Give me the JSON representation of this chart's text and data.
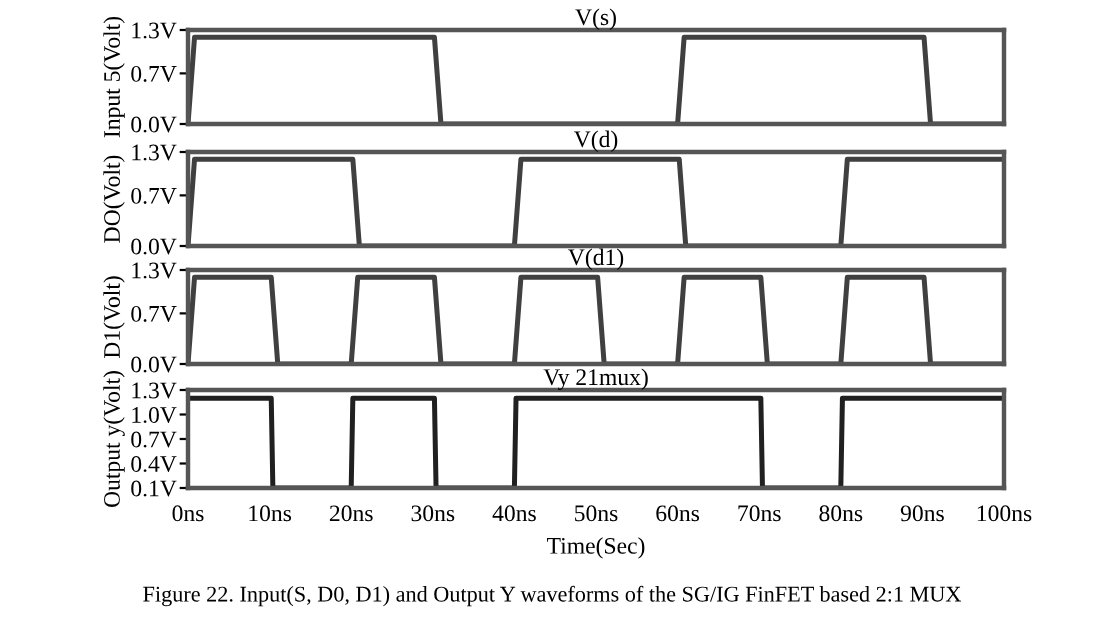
{
  "chart_data": [
    {
      "type": "line",
      "title": "V(s)",
      "ylabel": "Input 5(Volt)",
      "xlim": [
        0,
        100
      ],
      "ylim": [
        0,
        1.3
      ],
      "yticks": [
        {
          "value": 0,
          "label": "0.0V"
        },
        {
          "value": 0.7,
          "label": "0.7V"
        },
        {
          "value": 1.3,
          "label": "1.3V"
        }
      ],
      "tick_labels": "y",
      "grid": false,
      "legend": false,
      "series": [
        {
          "color": "#404040",
          "x": [
            0,
            0.8,
            30.2,
            31,
            60,
            60.8,
            90.2,
            91,
            100
          ],
          "values": [
            0,
            1.2,
            1.2,
            0,
            0,
            1.2,
            1.2,
            0,
            0
          ]
        }
      ]
    },
    {
      "type": "line",
      "title": "V(d)",
      "ylabel": "DO(Volt)",
      "xlim": [
        0,
        100
      ],
      "ylim": [
        0,
        1.3
      ],
      "yticks": [
        {
          "value": 0,
          "label": "0.0V"
        },
        {
          "value": 0.7,
          "label": "0.7V"
        },
        {
          "value": 1.3,
          "label": "1.3V"
        }
      ],
      "tick_labels": "y",
      "grid": false,
      "legend": false,
      "series": [
        {
          "color": "#404040",
          "x": [
            0,
            0.8,
            20.2,
            21,
            40,
            40.8,
            60.2,
            61,
            80,
            80.8,
            100
          ],
          "values": [
            0,
            1.2,
            1.2,
            0,
            0,
            1.2,
            1.2,
            0,
            0,
            1.2,
            1.2
          ]
        }
      ]
    },
    {
      "type": "line",
      "title": "V(d1)",
      "ylabel": "D1(Volt)",
      "xlim": [
        0,
        100
      ],
      "ylim": [
        0,
        1.3
      ],
      "yticks": [
        {
          "value": 0,
          "label": "0.0V"
        },
        {
          "value": 0.7,
          "label": "0.7V"
        },
        {
          "value": 1.3,
          "label": "1.3V"
        }
      ],
      "tick_labels": "y",
      "grid": false,
      "legend": false,
      "series": [
        {
          "color": "#404040",
          "x": [
            0,
            0.8,
            10.2,
            11,
            20,
            20.8,
            30.2,
            31,
            40,
            40.8,
            50.2,
            51,
            60,
            60.8,
            70.2,
            71,
            80,
            80.8,
            90.2,
            91,
            100
          ],
          "values": [
            0,
            1.2,
            1.2,
            0,
            0,
            1.2,
            1.2,
            0,
            0,
            1.2,
            1.2,
            0,
            0,
            1.2,
            1.2,
            0,
            0,
            1.2,
            1.2,
            0,
            0
          ]
        }
      ]
    },
    {
      "type": "line",
      "title": "Vy 21mux)",
      "ylabel": "Output y(Volt)",
      "xlabel": "Time(Sec)",
      "xlim": [
        0,
        100
      ],
      "ylim": [
        0.1,
        1.3
      ],
      "xticks": [
        {
          "value": 0,
          "label": "0ns"
        },
        {
          "value": 10,
          "label": "10ns"
        },
        {
          "value": 20,
          "label": "20ns"
        },
        {
          "value": 30,
          "label": "30ns"
        },
        {
          "value": 40,
          "label": "40ns"
        },
        {
          "value": 50,
          "label": "50ns"
        },
        {
          "value": 60,
          "label": "60ns"
        },
        {
          "value": 70,
          "label": "70ns"
        },
        {
          "value": 80,
          "label": "80ns"
        },
        {
          "value": 90,
          "label": "90ns"
        },
        {
          "value": 100,
          "label": "100ns"
        }
      ],
      "yticks": [
        {
          "value": 0.1,
          "label": "0.1V"
        },
        {
          "value": 0.4,
          "label": "0.4V"
        },
        {
          "value": 0.7,
          "label": "0.7V"
        },
        {
          "value": 1.0,
          "label": "1.0V"
        },
        {
          "value": 1.3,
          "label": "1.3V"
        }
      ],
      "grid": false,
      "legend": false,
      "annotations": [
        "Figure 22. Input(S, D0, D1) and Output Y waveforms of the SG/IG FinFET based 2:1 MUX"
      ],
      "series": [
        {
          "color": "#202020",
          "x": [
            0,
            0.2,
            10.2,
            10.4,
            20,
            20.2,
            30.2,
            30.4,
            40,
            40.2,
            70.2,
            70.4,
            80,
            80.2,
            100
          ],
          "values": [
            1.2,
            1.2,
            1.2,
            0.1,
            0.1,
            1.2,
            1.2,
            0.1,
            0.1,
            1.2,
            1.2,
            0.1,
            0.1,
            1.2,
            1.2
          ]
        }
      ]
    }
  ]
}
